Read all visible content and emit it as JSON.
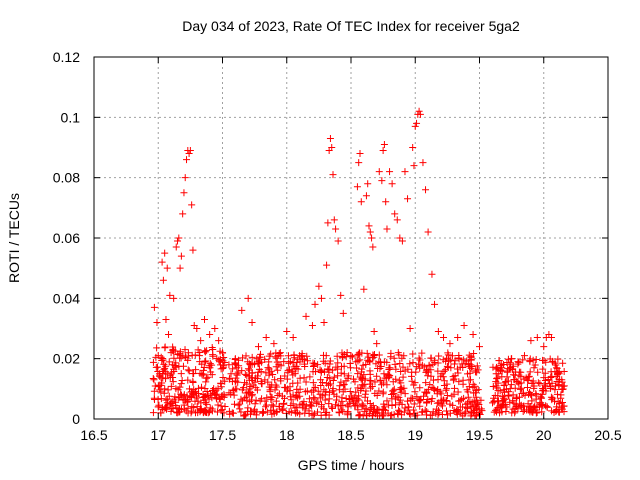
{
  "chart_data": {
    "type": "scatter",
    "title": "Day 034 of 2023, Rate Of TEC Index for receiver 5ga2",
    "xlabel": "GPS time / hours",
    "ylabel": "ROTI / TECUs",
    "xlim": [
      16.5,
      20.5
    ],
    "ylim": [
      0,
      0.12
    ],
    "xticks": [
      16.5,
      17,
      17.5,
      18,
      18.5,
      19,
      19.5,
      20,
      20.5
    ],
    "xtick_labels": [
      "16.5",
      "17",
      "17.5",
      "18",
      "18.5",
      "19",
      "19.5",
      "20",
      "20.5"
    ],
    "yticks": [
      0,
      0.02,
      0.04,
      0.06,
      0.08,
      0.1,
      0.12
    ],
    "ytick_labels": [
      "0",
      "0.02",
      "0.04",
      "0.06",
      "0.08",
      "0.1",
      "0.12"
    ],
    "grid": true,
    "marker": "+",
    "color": "#ff0000",
    "series": [
      {
        "name": "ROTI",
        "points": [
          [
            16.97,
            0.037
          ],
          [
            16.99,
            0.032
          ],
          [
            17.0,
            0.021
          ],
          [
            17.01,
            0.015
          ],
          [
            17.02,
            0.009
          ],
          [
            17.03,
            0.052
          ],
          [
            17.04,
            0.046
          ],
          [
            17.05,
            0.055
          ],
          [
            17.06,
            0.033
          ],
          [
            17.07,
            0.05
          ],
          [
            17.08,
            0.028
          ],
          [
            17.09,
            0.041
          ],
          [
            17.1,
            0.022
          ],
          [
            17.11,
            0.018
          ],
          [
            17.12,
            0.04
          ],
          [
            17.14,
            0.057
          ],
          [
            17.15,
            0.059
          ],
          [
            17.16,
            0.06
          ],
          [
            17.17,
            0.05
          ],
          [
            17.18,
            0.054
          ],
          [
            17.19,
            0.068
          ],
          [
            17.2,
            0.075
          ],
          [
            17.21,
            0.08
          ],
          [
            17.22,
            0.086
          ],
          [
            17.23,
            0.089
          ],
          [
            17.24,
            0.088
          ],
          [
            17.25,
            0.089
          ],
          [
            17.26,
            0.071
          ],
          [
            17.27,
            0.056
          ],
          [
            17.28,
            0.031
          ],
          [
            17.3,
            0.03
          ],
          [
            17.33,
            0.026
          ],
          [
            17.36,
            0.033
          ],
          [
            17.4,
            0.028
          ],
          [
            17.44,
            0.03
          ],
          [
            17.47,
            0.026
          ],
          [
            17.5,
            0.022
          ],
          [
            17.55,
            0.018
          ],
          [
            17.6,
            0.02
          ],
          [
            17.65,
            0.036
          ],
          [
            17.7,
            0.04
          ],
          [
            17.73,
            0.032
          ],
          [
            17.78,
            0.024
          ],
          [
            17.84,
            0.027
          ],
          [
            17.9,
            0.025
          ],
          [
            17.95,
            0.022
          ],
          [
            18.0,
            0.029
          ],
          [
            18.05,
            0.027
          ],
          [
            18.1,
            0.021
          ],
          [
            18.15,
            0.034
          ],
          [
            18.2,
            0.031
          ],
          [
            18.22,
            0.038
          ],
          [
            18.25,
            0.044
          ],
          [
            18.27,
            0.04
          ],
          [
            18.29,
            0.032
          ],
          [
            18.31,
            0.051
          ],
          [
            18.32,
            0.065
          ],
          [
            18.33,
            0.089
          ],
          [
            18.34,
            0.093
          ],
          [
            18.35,
            0.09
          ],
          [
            18.36,
            0.081
          ],
          [
            18.37,
            0.066
          ],
          [
            18.38,
            0.063
          ],
          [
            18.4,
            0.059
          ],
          [
            18.42,
            0.041
          ],
          [
            18.44,
            0.035
          ],
          [
            18.47,
            0.022
          ],
          [
            18.5,
            0.021
          ],
          [
            18.55,
            0.077
          ],
          [
            18.56,
            0.085
          ],
          [
            18.57,
            0.088
          ],
          [
            18.58,
            0.072
          ],
          [
            18.6,
            0.043
          ],
          [
            18.62,
            0.074
          ],
          [
            18.63,
            0.078
          ],
          [
            18.64,
            0.064
          ],
          [
            18.65,
            0.062
          ],
          [
            18.66,
            0.06
          ],
          [
            18.67,
            0.057
          ],
          [
            18.68,
            0.029
          ],
          [
            18.7,
            0.025
          ],
          [
            18.72,
            0.082
          ],
          [
            18.74,
            0.079
          ],
          [
            18.75,
            0.089
          ],
          [
            18.76,
            0.091
          ],
          [
            18.77,
            0.072
          ],
          [
            18.78,
            0.063
          ],
          [
            18.8,
            0.082
          ],
          [
            18.82,
            0.078
          ],
          [
            18.84,
            0.068
          ],
          [
            18.86,
            0.066
          ],
          [
            18.88,
            0.06
          ],
          [
            18.9,
            0.059
          ],
          [
            18.92,
            0.082
          ],
          [
            18.94,
            0.073
          ],
          [
            18.96,
            0.03
          ],
          [
            18.98,
            0.09
          ],
          [
            18.99,
            0.084
          ],
          [
            19.0,
            0.097
          ],
          [
            19.01,
            0.098
          ],
          [
            19.02,
            0.101
          ],
          [
            19.03,
            0.102
          ],
          [
            19.04,
            0.101
          ],
          [
            19.06,
            0.085
          ],
          [
            19.08,
            0.076
          ],
          [
            19.1,
            0.062
          ],
          [
            19.13,
            0.048
          ],
          [
            19.15,
            0.038
          ],
          [
            19.18,
            0.029
          ],
          [
            19.22,
            0.027
          ],
          [
            19.27,
            0.025
          ],
          [
            19.33,
            0.027
          ],
          [
            19.38,
            0.031
          ],
          [
            19.45,
            0.028
          ],
          [
            19.5,
            0.024
          ],
          [
            19.65,
            0.015
          ],
          [
            19.7,
            0.012
          ],
          [
            19.75,
            0.02
          ],
          [
            19.8,
            0.019
          ],
          [
            19.85,
            0.021
          ],
          [
            19.9,
            0.026
          ],
          [
            19.95,
            0.027
          ],
          [
            20.0,
            0.024
          ],
          [
            20.02,
            0.027
          ],
          [
            20.04,
            0.028
          ],
          [
            20.06,
            0.027
          ],
          [
            20.1,
            0.017
          ],
          [
            20.12,
            0.015
          ],
          [
            20.14,
            0.013
          ],
          [
            20.16,
            0.011
          ],
          [
            18.74,
            0.002
          ],
          [
            18.76,
            0.004
          ],
          [
            18.78,
            0.006
          ],
          [
            17.0,
            0.004
          ],
          [
            17.3,
            0.007
          ],
          [
            17.6,
            0.01
          ],
          [
            18.05,
            0.005
          ],
          [
            18.3,
            0.008
          ],
          [
            19.2,
            0.006
          ],
          [
            19.45,
            0.004
          ],
          [
            19.9,
            0.003
          ],
          [
            20.1,
            0.004
          ]
        ]
      }
    ],
    "band_segments": [
      {
        "x_range": [
          16.96,
          17.52
        ],
        "y_range": [
          0.002,
          0.024
        ],
        "n": 280
      },
      {
        "x_range": [
          17.55,
          19.52
        ],
        "y_range": [
          0.001,
          0.022
        ],
        "n": 800
      },
      {
        "x_range": [
          19.6,
          20.16
        ],
        "y_range": [
          0.002,
          0.02
        ],
        "n": 260
      }
    ]
  }
}
